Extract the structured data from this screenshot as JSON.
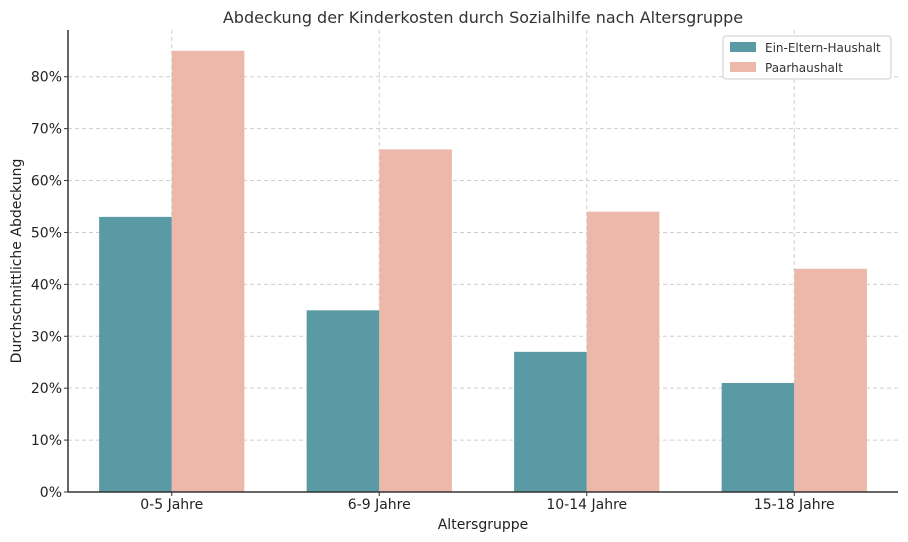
{
  "chart_data": {
    "type": "bar",
    "title": "Abdeckung der Kinderkosten durch Sozialhilfe nach Altersgruppe",
    "xlabel": "Altersgruppe",
    "ylabel": "Durchschnittliche Abdeckung",
    "categories": [
      "0-5 Jahre",
      "6-9 Jahre",
      "10-14 Jahre",
      "15-18 Jahre"
    ],
    "series": [
      {
        "name": "Ein-Eltern-Haushalt",
        "values": [
          0.53,
          0.35,
          0.27,
          0.21
        ],
        "color": "#5a9aa4"
      },
      {
        "name": "Paarhaushalt",
        "values": [
          0.85,
          0.66,
          0.54,
          0.43
        ],
        "color": "#ebb8aa"
      }
    ],
    "ylim": [
      0,
      0.89
    ],
    "yticks": [
      0,
      0.1,
      0.2,
      0.3,
      0.4,
      0.5,
      0.6,
      0.7,
      0.8
    ],
    "ytick_labels": [
      "0%",
      "10%",
      "20%",
      "30%",
      "40%",
      "50%",
      "60%",
      "70%",
      "80%"
    ],
    "grid": true,
    "legend_position": "top-right"
  }
}
